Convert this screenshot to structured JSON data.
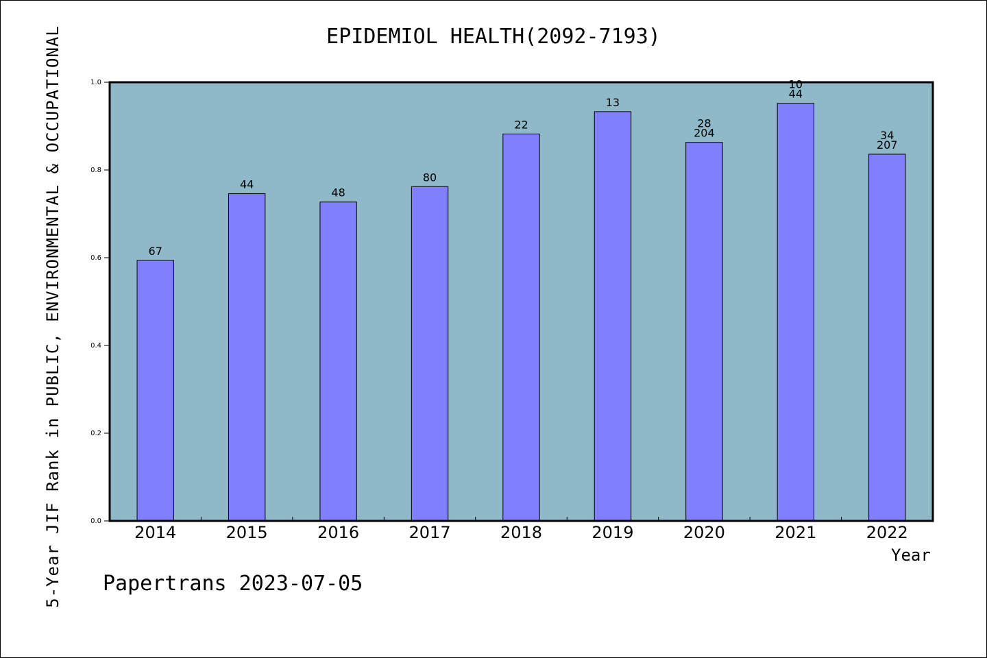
{
  "chart_data": {
    "type": "bar",
    "title": "EPIDEMIOL HEALTH(2092-7193)",
    "xlabel": "Year",
    "ylabel": "5-Year JIF Rank in PUBLIC, ENVIRONMENTAL & OCCUPATIONAL",
    "categories": [
      "2014",
      "2015",
      "2016",
      "2017",
      "2018",
      "2019",
      "2020",
      "2021",
      "2022"
    ],
    "values": [
      0.594,
      0.746,
      0.727,
      0.762,
      0.882,
      0.933,
      0.863,
      0.952,
      0.836
    ],
    "labels": [
      [
        "67"
      ],
      [
        "44"
      ],
      [
        "48"
      ],
      [
        "80"
      ],
      [
        "22"
      ],
      [
        "13"
      ],
      [
        "28",
        "204"
      ],
      [
        "10",
        "44"
      ],
      [
        "34",
        "207"
      ]
    ],
    "ylim": [
      0,
      1.0
    ],
    "yticks": [
      "0.0",
      "0.2",
      "0.4",
      "0.6",
      "0.8",
      "1.0"
    ],
    "grid": false,
    "colors": {
      "bar": "#8080ff",
      "plot_bg": "#8fb8c8",
      "axis": "#000000"
    }
  },
  "footer": "Papertrans 2023-07-05"
}
